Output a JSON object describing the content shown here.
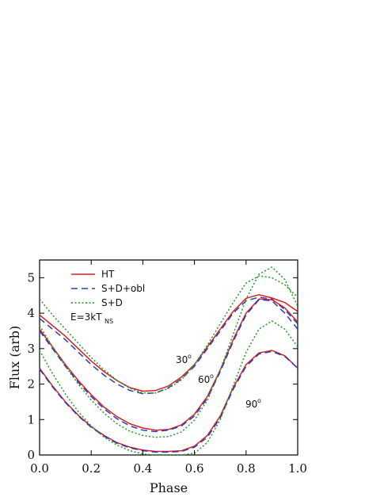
{
  "chart_data": {
    "type": "line",
    "title": "",
    "xlabel": "Phase",
    "ylabel": "Flux (arb)",
    "xlim": [
      0.0,
      1.0
    ],
    "ylim": [
      0.0,
      5.5
    ],
    "xticks": [
      "0.0",
      "0.2",
      "0.4",
      "0.6",
      "0.8",
      "1.0"
    ],
    "yticks": [
      "0",
      "1",
      "2",
      "3",
      "4",
      "5"
    ],
    "grid": false,
    "legend_position": "top-left",
    "legend": {
      "entries": [
        {
          "label": "HT",
          "style": "solid",
          "color": "#d62020"
        },
        {
          "label": "S+D+obl",
          "style": "dashed",
          "color": "#2a3fbf"
        },
        {
          "label": "S+D",
          "style": "dotted",
          "color": "#1f9a1f"
        }
      ],
      "note_main": "E=3kT",
      "note_sub": "NS"
    },
    "x": [
      0.0,
      0.05,
      0.1,
      0.15,
      0.2,
      0.25,
      0.3,
      0.35,
      0.4,
      0.45,
      0.5,
      0.55,
      0.6,
      0.65,
      0.7,
      0.75,
      0.8,
      0.85,
      0.9,
      0.95,
      1.0
    ],
    "groups": [
      {
        "annotation": "30",
        "annotation_sup": "o",
        "series": [
          {
            "name": "HT",
            "values": [
              3.95,
              3.65,
              3.35,
              3.0,
              2.65,
              2.35,
              2.1,
              1.9,
              1.8,
              1.82,
              1.95,
              2.2,
              2.55,
              3.05,
              3.55,
              4.05,
              4.42,
              4.52,
              4.43,
              4.3,
              4.05
            ]
          },
          {
            "name": "S+D+obl",
            "values": [
              3.85,
              3.55,
              3.25,
              2.9,
              2.55,
              2.25,
              2.0,
              1.82,
              1.73,
              1.75,
              1.9,
              2.15,
              2.5,
              3.0,
              3.5,
              4.0,
              4.35,
              4.45,
              4.4,
              4.1,
              3.7
            ]
          },
          {
            "name": "S+D",
            "values": [
              4.4,
              3.95,
              3.55,
              3.15,
              2.75,
              2.4,
              2.1,
              1.88,
              1.75,
              1.75,
              1.88,
              2.12,
              2.55,
              3.1,
              3.7,
              4.3,
              4.85,
              5.05,
              5.0,
              4.8,
              4.45
            ]
          }
        ]
      },
      {
        "annotation": "60",
        "annotation_sup": "o",
        "series": [
          {
            "name": "HT",
            "values": [
              3.55,
              3.05,
              2.55,
              2.1,
              1.7,
              1.35,
              1.08,
              0.88,
              0.76,
              0.7,
              0.72,
              0.85,
              1.15,
              1.65,
              2.4,
              3.25,
              4.0,
              4.4,
              4.38,
              4.15,
              3.75
            ]
          },
          {
            "name": "S+D+obl",
            "values": [
              3.5,
              3.0,
              2.5,
              2.05,
              1.65,
              1.3,
              1.02,
              0.82,
              0.7,
              0.66,
              0.7,
              0.82,
              1.1,
              1.6,
              2.35,
              3.2,
              3.95,
              4.38,
              4.35,
              4.0,
              3.55
            ]
          },
          {
            "name": "S+D",
            "values": [
              3.65,
              3.05,
              2.5,
              2.0,
              1.55,
              1.18,
              0.88,
              0.67,
              0.55,
              0.5,
              0.52,
              0.65,
              0.98,
              1.55,
              2.4,
              3.4,
              4.4,
              5.1,
              5.3,
              4.95,
              4.2
            ]
          }
        ]
      },
      {
        "annotation": "90",
        "annotation_sup": "o",
        "series": [
          {
            "name": "HT",
            "values": [
              2.45,
              1.95,
              1.5,
              1.12,
              0.8,
              0.55,
              0.35,
              0.22,
              0.14,
              0.1,
              0.1,
              0.12,
              0.25,
              0.55,
              1.1,
              1.9,
              2.55,
              2.88,
              2.95,
              2.8,
              2.45
            ]
          },
          {
            "name": "S+D+obl",
            "values": [
              2.42,
              1.92,
              1.48,
              1.1,
              0.78,
              0.53,
              0.33,
              0.2,
              0.12,
              0.08,
              0.08,
              0.1,
              0.22,
              0.5,
              1.05,
              1.85,
              2.5,
              2.85,
              2.92,
              2.78,
              2.45
            ]
          },
          {
            "name": "S+D",
            "values": [
              2.95,
              2.3,
              1.72,
              1.22,
              0.82,
              0.5,
              0.28,
              0.12,
              0.03,
              0.0,
              0.0,
              0.0,
              0.05,
              0.35,
              1.0,
              1.95,
              2.9,
              3.55,
              3.78,
              3.55,
              3.05
            ]
          }
        ]
      }
    ]
  }
}
